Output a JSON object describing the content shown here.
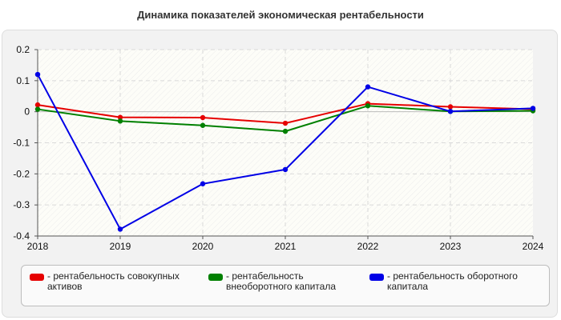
{
  "chart_data": {
    "type": "line",
    "title": "Динамика показателей экономическая рентабельности",
    "xlabel": "",
    "ylabel": "",
    "x": [
      "2018",
      "2019",
      "2020",
      "2021",
      "2022",
      "2023",
      "2024"
    ],
    "ylim": [
      -0.4,
      0.2
    ],
    "yticks": [
      "0.2",
      "0.1",
      "0",
      "-0.1",
      "-0.2",
      "-0.3",
      "-0.4"
    ],
    "grid": true,
    "legend_position": "bottom",
    "series": [
      {
        "name": "- рентабельность совокупных активов",
        "color": "#e60000",
        "values": [
          0.022,
          -0.018,
          -0.019,
          -0.037,
          0.026,
          0.016,
          0.008
        ]
      },
      {
        "name": "- рентабельность внеоборотного капитала",
        "color": "#008000",
        "values": [
          0.008,
          -0.03,
          -0.044,
          -0.063,
          0.019,
          0.001,
          0.003
        ]
      },
      {
        "name": "- рентабельность оборотного капитала",
        "color": "#0000e6",
        "values": [
          0.12,
          -0.378,
          -0.232,
          -0.186,
          0.08,
          0.001,
          0.011
        ]
      }
    ]
  }
}
